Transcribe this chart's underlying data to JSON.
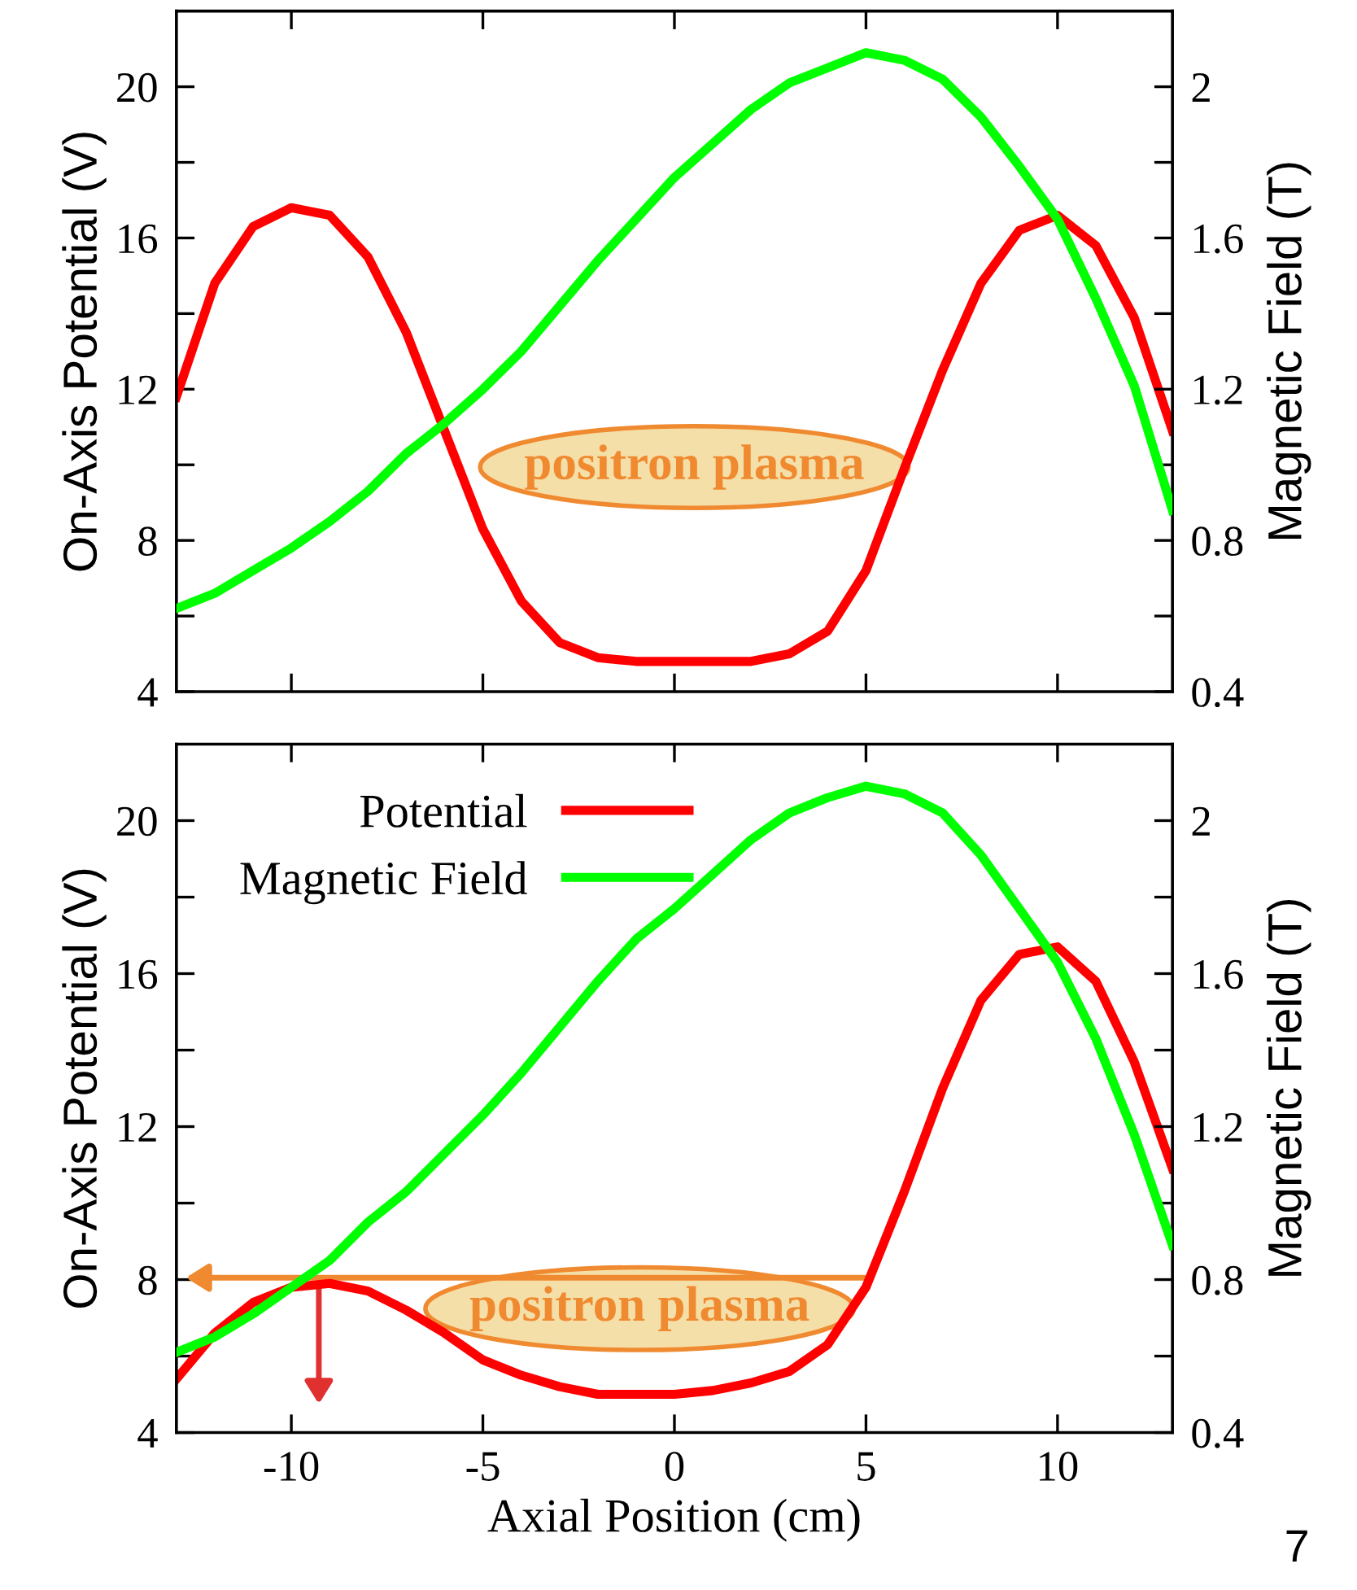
{
  "chart_data": [
    {
      "type": "line",
      "ylabel": "On-Axis Potential (V)",
      "y2label": "Magnetic Field (T)",
      "xlim": [
        -13,
        13
      ],
      "xticks": [
        -10,
        -5,
        0,
        5,
        10
      ],
      "ylim": [
        4,
        22
      ],
      "yticks": [
        4,
        {
          "value": 6,
          "label": null
        },
        8,
        {
          "value": 10,
          "label": null
        },
        12,
        {
          "value": 14,
          "label": null
        },
        16,
        {
          "value": 18,
          "label": null
        },
        20
      ],
      "y2lim": [
        0.4,
        2.2
      ],
      "y2ticks": [
        0.4,
        {
          "value": 0.6,
          "label": null
        },
        0.8,
        {
          "value": 1.0,
          "label": null
        },
        1.2,
        {
          "value": 1.4,
          "label": null
        },
        1.6,
        {
          "value": 1.8,
          "label": null
        },
        2
      ],
      "tick_labels": "y",
      "legend": false,
      "grid": false,
      "marker": "none",
      "line_style": "solid",
      "x": [
        -13,
        -12,
        -11,
        -10,
        -9,
        -8,
        -7,
        -6,
        -5,
        -4,
        -3,
        -2,
        -1,
        0,
        1,
        2,
        3,
        4,
        5,
        6,
        7,
        8,
        9,
        10,
        11,
        12,
        13
      ],
      "series": [
        {
          "color": "#ff0000",
          "axis": "y",
          "values": [
            11.8,
            14.8,
            16.3,
            16.8,
            16.6,
            15.5,
            13.5,
            10.9,
            8.3,
            6.4,
            5.3,
            4.9,
            4.8,
            4.8,
            4.8,
            4.8,
            5.0,
            5.6,
            7.2,
            9.9,
            12.5,
            14.8,
            16.2,
            16.6,
            15.8,
            13.9,
            10.9
          ]
        },
        {
          "color": "#00ff00",
          "axis": "y2",
          "values": [
            0.62,
            0.66,
            0.72,
            0.78,
            0.85,
            0.93,
            1.03,
            1.11,
            1.2,
            1.3,
            1.42,
            1.54,
            1.65,
            1.76,
            1.85,
            1.94,
            2.01,
            2.05,
            2.09,
            2.07,
            2.02,
            1.92,
            1.79,
            1.65,
            1.44,
            1.21,
            0.88
          ]
        }
      ],
      "annotations": [
        "positron plasma"
      ]
    },
    {
      "type": "line",
      "xlabel": "Axial Position (cm)",
      "ylabel": "On-Axis Potential (V)",
      "y2label": "Magnetic Field (T)",
      "xlim": [
        -13,
        13
      ],
      "xticks": [
        -10,
        -5,
        0,
        5,
        10
      ],
      "ylim": [
        4,
        22
      ],
      "yticks": [
        4,
        {
          "value": 6,
          "label": null
        },
        8,
        {
          "value": 10,
          "label": null
        },
        12,
        {
          "value": 14,
          "label": null
        },
        16,
        {
          "value": 18,
          "label": null
        },
        20
      ],
      "y2lim": [
        0.4,
        2.2
      ],
      "y2ticks": [
        0.4,
        {
          "value": 0.6,
          "label": null
        },
        0.8,
        {
          "value": 1.0,
          "label": null
        },
        1.2,
        {
          "value": 1.4,
          "label": null
        },
        1.6,
        {
          "value": 1.8,
          "label": null
        },
        2
      ],
      "legend": "top left",
      "grid": false,
      "marker": "none",
      "line_style": "solid",
      "x": [
        -13,
        -12,
        -11,
        -10,
        -9,
        -8,
        -7,
        -6,
        -5,
        -4,
        -3,
        -2,
        -1,
        0,
        1,
        2,
        3,
        4,
        5,
        6,
        7,
        8,
        9,
        10,
        11,
        12,
        13
      ],
      "series": [
        {
          "name": "Potential",
          "color": "#ff0000",
          "axis": "y",
          "values": [
            5.4,
            6.6,
            7.4,
            7.8,
            7.9,
            7.7,
            7.2,
            6.6,
            5.9,
            5.5,
            5.2,
            5.0,
            5.0,
            5.0,
            5.1,
            5.3,
            5.6,
            6.3,
            7.8,
            10.3,
            13.0,
            15.3,
            16.5,
            16.7,
            15.8,
            13.7,
            10.9
          ]
        },
        {
          "name": "Magnetic Field",
          "color": "#00ff00",
          "axis": "y2",
          "values": [
            0.61,
            0.65,
            0.71,
            0.78,
            0.85,
            0.95,
            1.03,
            1.13,
            1.23,
            1.34,
            1.46,
            1.58,
            1.69,
            1.77,
            1.86,
            1.95,
            2.02,
            2.06,
            2.09,
            2.07,
            2.02,
            1.91,
            1.77,
            1.63,
            1.43,
            1.18,
            0.89
          ]
        }
      ],
      "annotations": [
        "positron plasma",
        "7"
      ]
    }
  ]
}
